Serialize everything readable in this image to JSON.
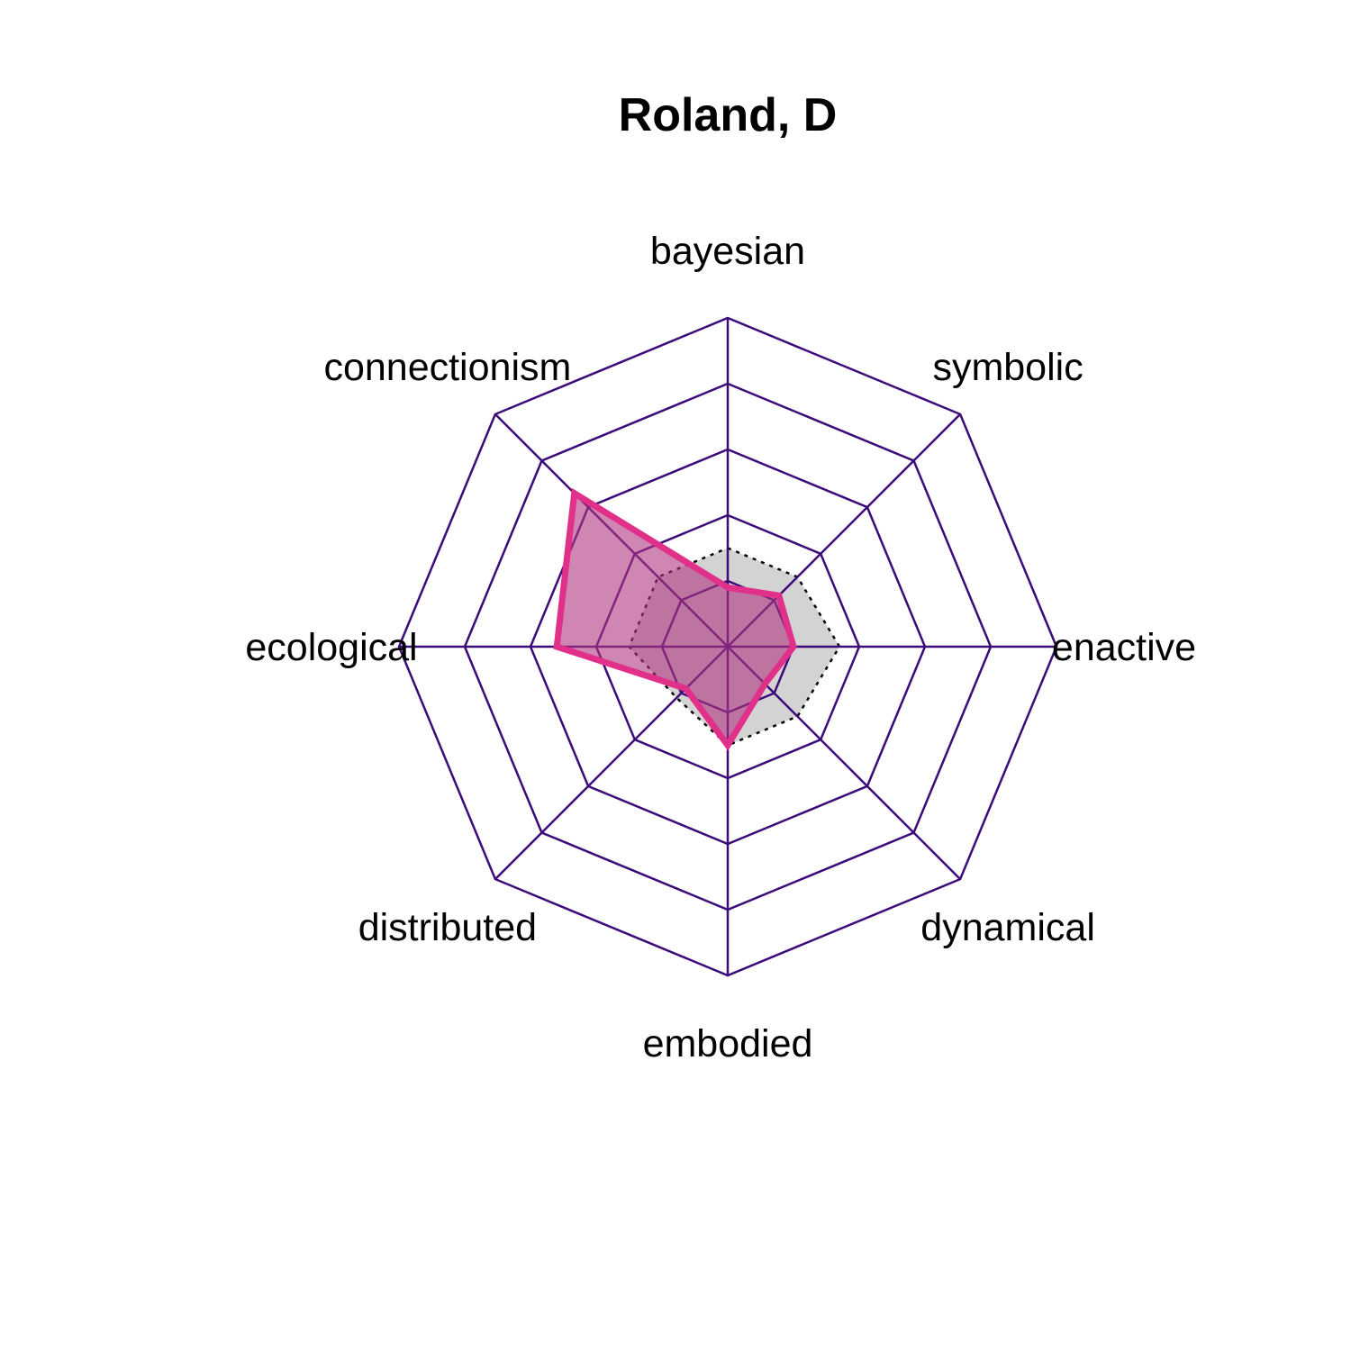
{
  "chart_data": {
    "type": "radar",
    "title": "Roland, D",
    "axes": [
      "bayesian",
      "symbolic",
      "enactive",
      "dynamical",
      "embodied",
      "distributed",
      "ecological",
      "connectionism"
    ],
    "rlim": [
      0,
      5
    ],
    "grid_levels": 5,
    "series": [
      {
        "values": [
          0.9,
          1.1,
          1.0,
          0.8,
          1.5,
          0.9,
          2.6,
          3.3
        ],
        "fill": "#b0357f",
        "fill_opacity": 0.6,
        "stroke": "#e0308a"
      },
      {
        "values": [
          1.5,
          1.5,
          1.7,
          1.5,
          1.5,
          1.1,
          1.5,
          1.5
        ],
        "fill": "#d3d3d3",
        "stroke": "#000000",
        "dashed": true
      }
    ],
    "grid_color": "#3d0a7a"
  }
}
